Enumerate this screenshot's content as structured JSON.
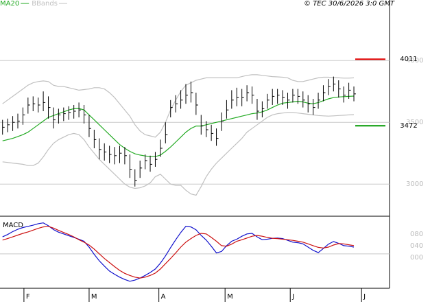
{
  "chart_data": [
    {
      "type": "ohlc",
      "source": "© TEC 30/6/2026 3:0 GMT",
      "xlim": [
        -0.5,
        76
      ],
      "xticks": [
        {
          "value": 4.2,
          "label": "F"
        },
        {
          "value": 17,
          "label": "M"
        },
        {
          "value": 30.7,
          "label": "A"
        },
        {
          "value": 43.7,
          "label": "M"
        },
        {
          "value": 56.5,
          "label": "J"
        },
        {
          "value": 70.5,
          "label": "J"
        }
      ],
      "ylim": [
        2740,
        4490
      ],
      "yticks": [
        3000,
        3500,
        4000
      ],
      "grid": true,
      "color": "#000000",
      "close": [
        3460,
        3480,
        3500,
        3510,
        3560,
        3640,
        3650,
        3640,
        3660,
        3620,
        3520,
        3560,
        3570,
        3580,
        3590,
        3600,
        3560,
        3450,
        3360,
        3280,
        3260,
        3240,
        3230,
        3250,
        3230,
        3120,
        3030,
        3130,
        3190,
        3160,
        3200,
        3290,
        3400,
        3620,
        3650,
        3680,
        3720,
        3740,
        3640,
        3470,
        3440,
        3410,
        3370,
        3510,
        3600,
        3680,
        3700,
        3700,
        3740,
        3720,
        3590,
        3610,
        3680,
        3710,
        3720,
        3700,
        3680,
        3720,
        3710,
        3680,
        3650,
        3620,
        3680,
        3740,
        3790,
        3810,
        3770,
        3720,
        3760,
        3730
      ],
      "high": [
        3520,
        3530,
        3550,
        3570,
        3620,
        3700,
        3710,
        3700,
        3750,
        3710,
        3620,
        3610,
        3620,
        3630,
        3640,
        3660,
        3640,
        3560,
        3440,
        3370,
        3330,
        3310,
        3300,
        3310,
        3300,
        3240,
        3120,
        3190,
        3240,
        3230,
        3260,
        3360,
        3500,
        3680,
        3720,
        3760,
        3810,
        3830,
        3740,
        3560,
        3510,
        3480,
        3450,
        3580,
        3680,
        3760,
        3780,
        3770,
        3800,
        3790,
        3690,
        3670,
        3730,
        3770,
        3770,
        3760,
        3740,
        3770,
        3770,
        3750,
        3720,
        3690,
        3740,
        3800,
        3850,
        3870,
        3840,
        3790,
        3820,
        3790
      ],
      "low": [
        3400,
        3420,
        3430,
        3450,
        3480,
        3570,
        3590,
        3580,
        3590,
        3530,
        3450,
        3490,
        3510,
        3520,
        3530,
        3540,
        3490,
        3380,
        3290,
        3200,
        3190,
        3170,
        3160,
        3170,
        3160,
        3050,
        2980,
        3050,
        3120,
        3100,
        3140,
        3220,
        3330,
        3540,
        3580,
        3610,
        3650,
        3660,
        3560,
        3400,
        3380,
        3350,
        3310,
        3430,
        3530,
        3610,
        3630,
        3630,
        3670,
        3650,
        3520,
        3540,
        3610,
        3640,
        3650,
        3640,
        3610,
        3660,
        3650,
        3620,
        3580,
        3560,
        3610,
        3670,
        3720,
        3750,
        3700,
        3660,
        3690,
        3670
      ],
      "series": [
        {
          "name": "MA20",
          "color": "#22aa22",
          "values": [
            3350,
            3360,
            3370,
            3385,
            3400,
            3420,
            3450,
            3480,
            3510,
            3540,
            3555,
            3570,
            3585,
            3600,
            3610,
            3612,
            3600,
            3560,
            3520,
            3480,
            3440,
            3400,
            3360,
            3320,
            3290,
            3265,
            3245,
            3235,
            3228,
            3222,
            3222,
            3235,
            3265,
            3300,
            3340,
            3380,
            3420,
            3450,
            3470,
            3470,
            3480,
            3490,
            3500,
            3510,
            3520,
            3530,
            3540,
            3550,
            3560,
            3570,
            3575,
            3585,
            3600,
            3620,
            3640,
            3655,
            3660,
            3665,
            3670,
            3665,
            3655,
            3650,
            3660,
            3675,
            3690,
            3700,
            3705,
            3708,
            3710,
            3712
          ]
        },
        {
          "name": "BBands",
          "color": "#c0c0c0",
          "upper": [
            3650,
            3680,
            3710,
            3740,
            3770,
            3800,
            3820,
            3830,
            3835,
            3830,
            3800,
            3790,
            3790,
            3780,
            3770,
            3760,
            3765,
            3770,
            3780,
            3780,
            3770,
            3740,
            3700,
            3650,
            3600,
            3550,
            3480,
            3430,
            3400,
            3390,
            3380,
            3420,
            3500,
            3600,
            3680,
            3750,
            3800,
            3820,
            3840,
            3850,
            3860,
            3860,
            3860,
            3860,
            3860,
            3860,
            3860,
            3870,
            3880,
            3885,
            3885,
            3880,
            3875,
            3870,
            3868,
            3865,
            3860,
            3840,
            3830,
            3830,
            3840,
            3850,
            3860,
            3865,
            3865,
            3862,
            3860,
            3858,
            3858,
            3860
          ],
          "lower": [
            3180,
            3175,
            3170,
            3165,
            3160,
            3150,
            3150,
            3170,
            3220,
            3280,
            3330,
            3360,
            3380,
            3400,
            3410,
            3400,
            3360,
            3300,
            3250,
            3200,
            3160,
            3120,
            3080,
            3040,
            3000,
            2975,
            2965,
            2970,
            2985,
            3010,
            3060,
            3080,
            3040,
            3000,
            2990,
            2990,
            2950,
            2920,
            2910,
            2980,
            3060,
            3120,
            3170,
            3210,
            3250,
            3290,
            3330,
            3370,
            3420,
            3450,
            3480,
            3510,
            3540,
            3560,
            3570,
            3575,
            3580,
            3580,
            3575,
            3570,
            3565,
            3560,
            3555,
            3552,
            3550,
            3552,
            3555,
            3557,
            3560,
            3562
          ]
        }
      ],
      "markers": [
        {
          "value": 4011,
          "color": "#e00000"
        },
        {
          "value": 3472,
          "color": "#009900"
        }
      ]
    },
    {
      "type": "line",
      "title": "MACD",
      "xlim": [
        -0.5,
        76
      ],
      "ylim": [
        -106,
        136
      ],
      "yticks": [
        {
          "value": 80,
          "label": "080"
        },
        {
          "value": 40,
          "label": "040"
        },
        {
          "value": 0,
          "label": "000"
        }
      ],
      "series": [
        {
          "color": "#1010cc",
          "values": [
            70,
            78,
            88,
            96,
            102,
            106,
            110,
            115,
            118,
            108,
            95,
            86,
            80,
            74,
            68,
            62,
            55,
            35,
            10,
            -12,
            -30,
            -47,
            -58,
            -68,
            -76,
            -82,
            -78,
            -71,
            -62,
            -52,
            -40,
            -20,
            5,
            33,
            60,
            85,
            106,
            104,
            94,
            75,
            59,
            38,
            15,
            20,
            40,
            55,
            62,
            72,
            80,
            82,
            70,
            60,
            62,
            65,
            66,
            64,
            58,
            52,
            50,
            46,
            35,
            24,
            16,
            30,
            45,
            54,
            48,
            40,
            38,
            35
          ]
        },
        {
          "color": "#cc1010",
          "values": [
            59,
            64,
            70,
            76,
            82,
            87,
            93,
            99,
            104,
            106,
            100,
            92,
            85,
            78,
            70,
            60,
            52,
            42,
            28,
            12,
            -4,
            -18,
            -32,
            -45,
            -55,
            -62,
            -68,
            -71,
            -68,
            -62,
            -54,
            -40,
            -22,
            -4,
            15,
            35,
            52,
            64,
            75,
            82,
            80,
            68,
            55,
            40,
            38,
            45,
            55,
            60,
            66,
            72,
            75,
            72,
            68,
            65,
            64,
            62,
            60,
            58,
            55,
            52,
            46,
            40,
            34,
            32,
            35,
            42,
            47,
            46,
            43,
            40
          ]
        }
      ]
    }
  ]
}
